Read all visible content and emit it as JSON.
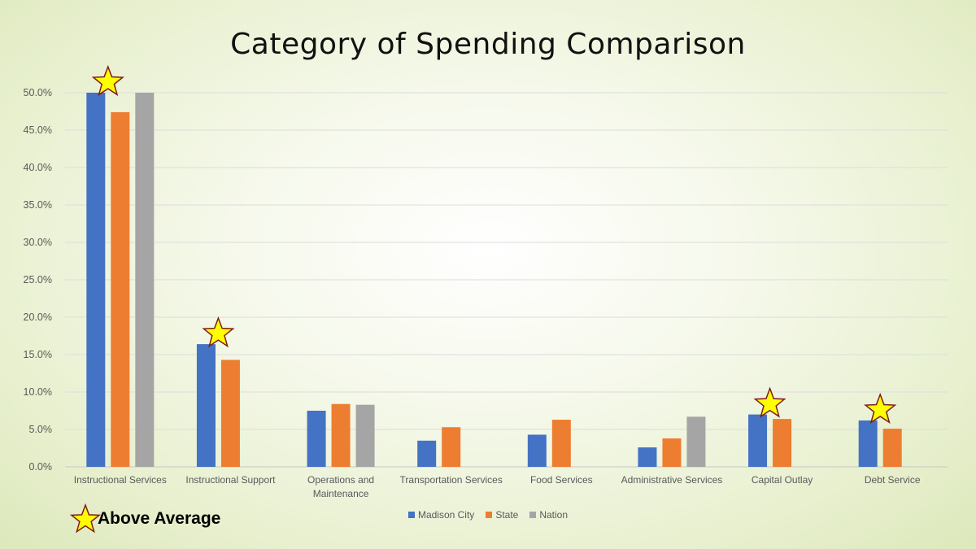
{
  "slide": {
    "title": "Category of Spending Comparison",
    "note": "Above Average",
    "note_icon": "star-icon",
    "star_fill": "#ffff00",
    "star_stroke": "#7f1b1b"
  },
  "chart_data": {
    "type": "bar",
    "title": "Category of Spending Comparison",
    "xlabel": "",
    "ylabel": "",
    "ylim": [
      0,
      50
    ],
    "yticks": [
      "0.0%",
      "5.0%",
      "10.0%",
      "15.0%",
      "20.0%",
      "25.0%",
      "30.0%",
      "35.0%",
      "40.0%",
      "45.0%",
      "50.0%"
    ],
    "grid": true,
    "legend_position": "bottom",
    "categories": [
      "Instructional Services",
      "Instructional Support",
      "Operations and Maintenance",
      "Transportation Services",
      "Food Services",
      "Administrative Services",
      "Capital Outlay",
      "Debt Service"
    ],
    "series": [
      {
        "name": "Madison City",
        "color": "#4472c4",
        "values": [
          50.0,
          16.4,
          7.5,
          3.5,
          4.3,
          2.6,
          7.0,
          6.2
        ]
      },
      {
        "name": "State",
        "color": "#ed7d31",
        "values": [
          47.4,
          14.3,
          8.4,
          5.3,
          6.3,
          3.8,
          6.4,
          5.1
        ]
      },
      {
        "name": "Nation",
        "color": "#a5a5a5",
        "values": [
          50.0,
          null,
          8.3,
          null,
          null,
          6.7,
          null,
          null
        ]
      }
    ],
    "above_average": [
      "Instructional Services",
      "Instructional Support",
      "Capital Outlay",
      "Debt Service"
    ]
  }
}
